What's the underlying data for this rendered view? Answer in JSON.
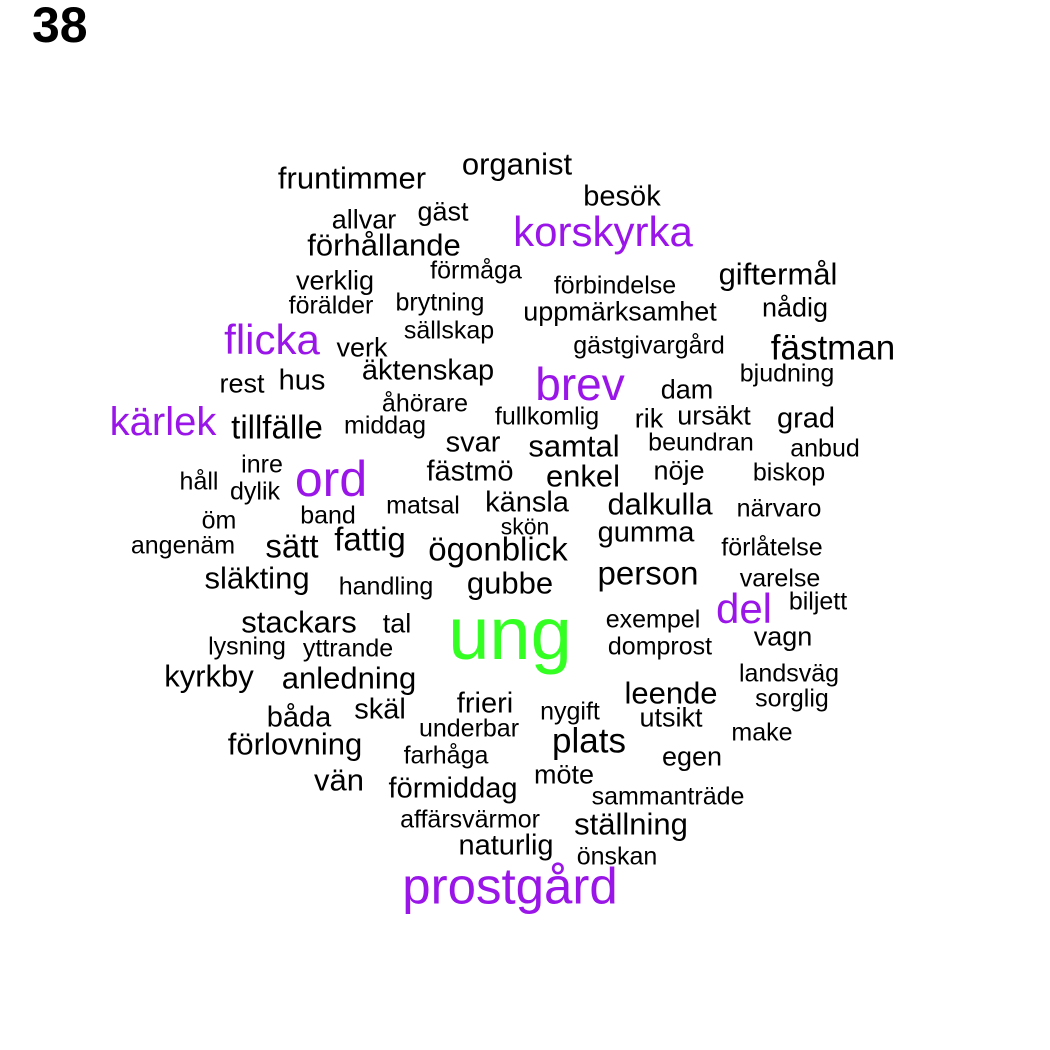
{
  "page_number": "38",
  "colors": {
    "default": "#000000",
    "medium": "#9a16e8",
    "top": "#33ff22"
  },
  "words": [
    {
      "text": "organist",
      "tier": "default"
    },
    {
      "text": "fruntimmer",
      "tier": "default"
    },
    {
      "text": "besök",
      "tier": "default"
    },
    {
      "text": "allvar",
      "tier": "default"
    },
    {
      "text": "gäst",
      "tier": "default"
    },
    {
      "text": "korskyrka",
      "tier": "medium"
    },
    {
      "text": "förhållande",
      "tier": "default"
    },
    {
      "text": "förmåga",
      "tier": "default"
    },
    {
      "text": "verklig",
      "tier": "default"
    },
    {
      "text": "förbindelse",
      "tier": "default"
    },
    {
      "text": "giftermål",
      "tier": "default"
    },
    {
      "text": "förälder",
      "tier": "default"
    },
    {
      "text": "brytning",
      "tier": "default"
    },
    {
      "text": "uppmärksamhet",
      "tier": "default"
    },
    {
      "text": "nådig",
      "tier": "default"
    },
    {
      "text": "flicka",
      "tier": "medium"
    },
    {
      "text": "sällskap",
      "tier": "default"
    },
    {
      "text": "verk",
      "tier": "default"
    },
    {
      "text": "gästgivargård",
      "tier": "default"
    },
    {
      "text": "fästman",
      "tier": "default"
    },
    {
      "text": "rest",
      "tier": "default"
    },
    {
      "text": "hus",
      "tier": "default"
    },
    {
      "text": "äktenskap",
      "tier": "default"
    },
    {
      "text": "brev",
      "tier": "medium"
    },
    {
      "text": "bjudning",
      "tier": "default"
    },
    {
      "text": "dam",
      "tier": "default"
    },
    {
      "text": "åhörare",
      "tier": "default"
    },
    {
      "text": "kärlek",
      "tier": "medium"
    },
    {
      "text": "tillfälle",
      "tier": "default"
    },
    {
      "text": "middag",
      "tier": "default"
    },
    {
      "text": "fullkomlig",
      "tier": "default"
    },
    {
      "text": "rik",
      "tier": "default"
    },
    {
      "text": "ursäkt",
      "tier": "default"
    },
    {
      "text": "grad",
      "tier": "default"
    },
    {
      "text": "svar",
      "tier": "default"
    },
    {
      "text": "samtal",
      "tier": "default"
    },
    {
      "text": "beundran",
      "tier": "default"
    },
    {
      "text": "anbud",
      "tier": "default"
    },
    {
      "text": "inre",
      "tier": "default"
    },
    {
      "text": "ord",
      "tier": "medium"
    },
    {
      "text": "fästmö",
      "tier": "default"
    },
    {
      "text": "enkel",
      "tier": "default"
    },
    {
      "text": "nöje",
      "tier": "default"
    },
    {
      "text": "biskop",
      "tier": "default"
    },
    {
      "text": "håll",
      "tier": "default"
    },
    {
      "text": "dylik",
      "tier": "default"
    },
    {
      "text": "känsla",
      "tier": "default"
    },
    {
      "text": "matsal",
      "tier": "default"
    },
    {
      "text": "dalkulla",
      "tier": "default"
    },
    {
      "text": "närvaro",
      "tier": "default"
    },
    {
      "text": "band",
      "tier": "default"
    },
    {
      "text": "öm",
      "tier": "default"
    },
    {
      "text": "skön",
      "tier": "default"
    },
    {
      "text": "fattig",
      "tier": "default"
    },
    {
      "text": "gumma",
      "tier": "default"
    },
    {
      "text": "angenäm",
      "tier": "default"
    },
    {
      "text": "sätt",
      "tier": "default"
    },
    {
      "text": "ögonblick",
      "tier": "default"
    },
    {
      "text": "förlåtelse",
      "tier": "default"
    },
    {
      "text": "släkting",
      "tier": "default"
    },
    {
      "text": "person",
      "tier": "default"
    },
    {
      "text": "handling",
      "tier": "default"
    },
    {
      "text": "gubbe",
      "tier": "default"
    },
    {
      "text": "varelse",
      "tier": "default"
    },
    {
      "text": "biljett",
      "tier": "default"
    },
    {
      "text": "del",
      "tier": "medium"
    },
    {
      "text": "stackars",
      "tier": "default"
    },
    {
      "text": "tal",
      "tier": "default"
    },
    {
      "text": "ung",
      "tier": "top"
    },
    {
      "text": "exempel",
      "tier": "default"
    },
    {
      "text": "vagn",
      "tier": "default"
    },
    {
      "text": "lysning",
      "tier": "default"
    },
    {
      "text": "yttrande",
      "tier": "default"
    },
    {
      "text": "domprost",
      "tier": "default"
    },
    {
      "text": "kyrkby",
      "tier": "default"
    },
    {
      "text": "anledning",
      "tier": "default"
    },
    {
      "text": "landsväg",
      "tier": "default"
    },
    {
      "text": "leende",
      "tier": "default"
    },
    {
      "text": "sorglig",
      "tier": "default"
    },
    {
      "text": "frieri",
      "tier": "default"
    },
    {
      "text": "skäl",
      "tier": "default"
    },
    {
      "text": "båda",
      "tier": "default"
    },
    {
      "text": "nygift",
      "tier": "default"
    },
    {
      "text": "utsikt",
      "tier": "default"
    },
    {
      "text": "underbar",
      "tier": "default"
    },
    {
      "text": "make",
      "tier": "default"
    },
    {
      "text": "förlovning",
      "tier": "default"
    },
    {
      "text": "plats",
      "tier": "default"
    },
    {
      "text": "farhåga",
      "tier": "default"
    },
    {
      "text": "egen",
      "tier": "default"
    },
    {
      "text": "möte",
      "tier": "default"
    },
    {
      "text": "vän",
      "tier": "default"
    },
    {
      "text": "förmiddag",
      "tier": "default"
    },
    {
      "text": "sammanträde",
      "tier": "default"
    },
    {
      "text": "affärsvärmor",
      "tier": "default"
    },
    {
      "text": "ställning",
      "tier": "default"
    },
    {
      "text": "naturlig",
      "tier": "default"
    },
    {
      "text": "önskan",
      "tier": "default"
    },
    {
      "text": "prostgård",
      "tier": "medium"
    }
  ]
}
